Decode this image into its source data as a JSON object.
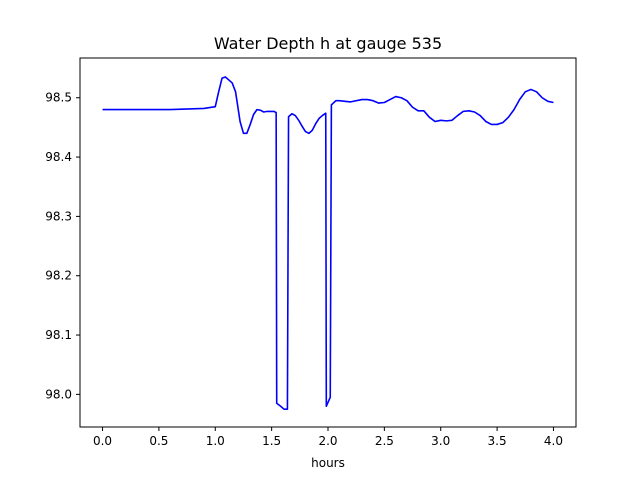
{
  "chart_data": {
    "type": "line",
    "title": "Water Depth h at gauge 535",
    "xlabel": "hours",
    "ylabel": "",
    "xlim": [
      -0.2,
      4.2
    ],
    "ylim": [
      97.945,
      98.567
    ],
    "xticks": [
      0.0,
      0.5,
      1.0,
      1.5,
      2.0,
      2.5,
      3.0,
      3.5,
      4.0
    ],
    "xtick_labels": [
      "0.0",
      "0.5",
      "1.0",
      "1.5",
      "2.0",
      "2.5",
      "3.0",
      "3.5",
      "4.0"
    ],
    "yticks": [
      98.0,
      98.1,
      98.2,
      98.3,
      98.4,
      98.5
    ],
    "ytick_labels": [
      "98.0",
      "98.1",
      "98.2",
      "98.3",
      "98.4",
      "98.5"
    ],
    "grid": false,
    "series": [
      {
        "color": "#0000ff",
        "x": [
          0.0,
          0.3,
          0.6,
          0.9,
          1.0,
          1.03,
          1.06,
          1.09,
          1.12,
          1.15,
          1.18,
          1.2,
          1.22,
          1.25,
          1.28,
          1.31,
          1.34,
          1.37,
          1.4,
          1.43,
          1.46,
          1.49,
          1.52,
          1.54,
          1.545,
          1.58,
          1.61,
          1.64,
          1.65,
          1.68,
          1.71,
          1.74,
          1.77,
          1.8,
          1.83,
          1.86,
          1.89,
          1.92,
          1.95,
          1.98,
          1.985,
          2.02,
          2.03,
          2.07,
          2.1,
          2.2,
          2.3,
          2.35,
          2.4,
          2.45,
          2.5,
          2.55,
          2.6,
          2.65,
          2.7,
          2.75,
          2.8,
          2.85,
          2.9,
          2.95,
          3.0,
          3.05,
          3.1,
          3.15,
          3.2,
          3.25,
          3.3,
          3.35,
          3.4,
          3.45,
          3.5,
          3.55,
          3.6,
          3.65,
          3.7,
          3.75,
          3.8,
          3.85,
          3.9,
          3.95,
          4.0
        ],
        "y": [
          98.48,
          98.48,
          98.48,
          98.482,
          98.485,
          98.51,
          98.533,
          98.535,
          98.53,
          98.525,
          98.51,
          98.485,
          98.46,
          98.44,
          98.44,
          98.455,
          98.472,
          98.48,
          98.479,
          98.476,
          98.477,
          98.477,
          98.477,
          98.475,
          97.985,
          97.98,
          97.975,
          97.975,
          98.468,
          98.473,
          98.47,
          98.462,
          98.452,
          98.443,
          98.44,
          98.445,
          98.456,
          98.465,
          98.47,
          98.474,
          97.98,
          97.995,
          98.488,
          98.495,
          98.495,
          98.493,
          98.497,
          98.497,
          98.495,
          98.491,
          98.492,
          98.497,
          98.502,
          98.5,
          98.495,
          98.484,
          98.478,
          98.478,
          98.467,
          98.46,
          98.462,
          98.461,
          98.462,
          98.47,
          98.477,
          98.478,
          98.476,
          98.47,
          98.46,
          98.455,
          98.455,
          98.458,
          98.467,
          98.48,
          98.497,
          98.51,
          98.514,
          98.51,
          98.5,
          98.494,
          98.492
        ]
      }
    ]
  }
}
